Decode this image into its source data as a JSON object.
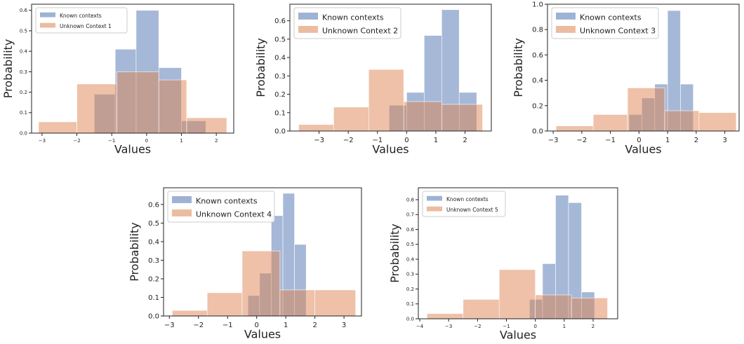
{
  "colors": {
    "known": "#4c72b0",
    "unknown": "#dd8452"
  },
  "chart_data": [
    {
      "type": "bar",
      "subtype": "histogram",
      "xlabel": "Values",
      "ylabel": "Probability",
      "xlim": [
        -3.3,
        2.5
      ],
      "ylim": [
        0,
        0.63
      ],
      "xticks": [
        -3,
        -2,
        -1,
        0,
        1,
        2
      ],
      "yticks": [
        0,
        0.1,
        0.2,
        0.3,
        0.4,
        0.5,
        0.6
      ],
      "legend": "top-left",
      "series": [
        {
          "name": "Known contexts",
          "edges": [
            -1.5,
            -0.9,
            -0.3,
            0.35,
            1.0,
            1.7
          ],
          "values": [
            0.19,
            0.41,
            0.6,
            0.32,
            0.06
          ]
        },
        {
          "name": "Unknown Context 1",
          "edges": [
            -3.1,
            -2.0,
            -0.85,
            0.35,
            1.15,
            2.3
          ],
          "values": [
            0.055,
            0.24,
            0.3,
            0.26,
            0.075
          ]
        }
      ]
    },
    {
      "type": "bar",
      "subtype": "histogram",
      "xlabel": "Values",
      "ylabel": "Probability",
      "xlim": [
        -4.0,
        2.9
      ],
      "ylim": [
        0,
        0.69
      ],
      "xticks": [
        -3,
        -2,
        -1,
        0,
        1,
        2
      ],
      "yticks": [
        0,
        0.1,
        0.2,
        0.3,
        0.4,
        0.5,
        0.6
      ],
      "legend": "top-left",
      "series": [
        {
          "name": "Known contexts",
          "edges": [
            -0.6,
            0.0,
            0.6,
            1.2,
            1.8,
            2.4
          ],
          "values": [
            0.14,
            0.21,
            0.52,
            0.66,
            0.21
          ]
        },
        {
          "name": "Unknown Context 2",
          "edges": [
            -3.7,
            -2.5,
            -1.3,
            -0.1,
            1.2,
            2.6
          ],
          "values": [
            0.035,
            0.13,
            0.335,
            0.16,
            0.145
          ]
        }
      ]
    },
    {
      "type": "bar",
      "subtype": "histogram",
      "xlabel": "Values",
      "ylabel": "Probability",
      "xlim": [
        -3.2,
        3.5
      ],
      "ylim": [
        0,
        1.0
      ],
      "xticks": [
        -3,
        -2,
        -1,
        0,
        1,
        2,
        3
      ],
      "yticks": [
        0,
        0.2,
        0.4,
        0.6,
        0.8,
        1.0
      ],
      "legend": "top-left",
      "series": [
        {
          "name": "Known contexts",
          "edges": [
            -0.35,
            0.1,
            0.55,
            1.0,
            1.45,
            1.9
          ],
          "values": [
            0.13,
            0.26,
            0.37,
            0.95,
            0.37
          ]
        },
        {
          "name": "Unknown Context 3",
          "edges": [
            -2.9,
            -1.6,
            -0.4,
            0.9,
            2.1,
            3.4
          ],
          "values": [
            0.04,
            0.13,
            0.34,
            0.16,
            0.145
          ]
        }
      ]
    },
    {
      "type": "bar",
      "subtype": "histogram",
      "xlabel": "Values",
      "ylabel": "Probability",
      "xlim": [
        -3.2,
        3.6
      ],
      "ylim": [
        0,
        0.69
      ],
      "xticks": [
        -3,
        -2,
        -1,
        0,
        1,
        2,
        3
      ],
      "yticks": [
        0,
        0.1,
        0.2,
        0.3,
        0.4,
        0.5,
        0.6
      ],
      "legend": "top-left",
      "series": [
        {
          "name": "Known contexts",
          "edges": [
            -0.3,
            0.1,
            0.5,
            0.9,
            1.3,
            1.7
          ],
          "values": [
            0.11,
            0.23,
            0.54,
            0.66,
            0.385
          ]
        },
        {
          "name": "Unknown Context 4",
          "edges": [
            -2.9,
            -1.7,
            -0.5,
            0.8,
            2.0,
            3.4
          ],
          "values": [
            0.03,
            0.125,
            0.35,
            0.14,
            0.14
          ]
        }
      ]
    },
    {
      "type": "bar",
      "subtype": "histogram",
      "xlabel": "Values",
      "ylabel": "Probability",
      "xlim": [
        -4.05,
        2.85
      ],
      "ylim": [
        0,
        0.88
      ],
      "xticks": [
        -4,
        -3,
        -2,
        -1,
        0,
        1,
        2
      ],
      "yticks": [
        0,
        0.1,
        0.2,
        0.3,
        0.4,
        0.5,
        0.6,
        0.7,
        0.8
      ],
      "legend": "top-left",
      "series": [
        {
          "name": "Known contexts",
          "edges": [
            -0.2,
            0.25,
            0.7,
            1.15,
            1.6,
            2.05
          ],
          "values": [
            0.13,
            0.37,
            0.83,
            0.78,
            0.18
          ]
        },
        {
          "name": "Unknown Context 5",
          "edges": [
            -3.75,
            -2.5,
            -1.25,
            0.0,
            1.25,
            2.5
          ],
          "values": [
            0.035,
            0.13,
            0.33,
            0.16,
            0.14
          ]
        }
      ]
    }
  ]
}
